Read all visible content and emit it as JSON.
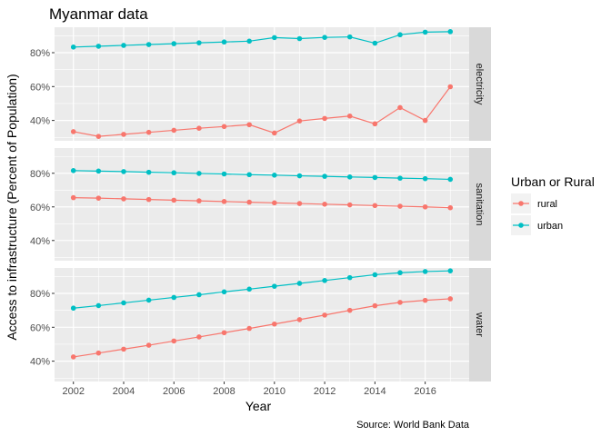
{
  "chart_data": {
    "type": "line",
    "title": "Myanmar data",
    "xlabel": "Year",
    "ylabel": "Access to infrastructure (Percent of Population)",
    "caption": "Source: World Bank Data",
    "x": [
      2002,
      2003,
      2004,
      2005,
      2006,
      2007,
      2008,
      2009,
      2010,
      2011,
      2012,
      2013,
      2014,
      2015,
      2016,
      2017
    ],
    "x_ticks": [
      2002,
      2004,
      2006,
      2008,
      2010,
      2012,
      2014,
      2016
    ],
    "x_tick_labels": [
      "2002",
      "2004",
      "2006",
      "2008",
      "2010",
      "2012",
      "2014",
      "2016"
    ],
    "xlim": [
      2001.25,
      2017.75
    ],
    "ylim": [
      28,
      95
    ],
    "y_ticks": [
      40,
      60,
      80
    ],
    "y_tick_labels": [
      "40%",
      "60%",
      "80%"
    ],
    "grid": true,
    "legend": {
      "title": "Urban or Rural",
      "position": "right",
      "entries": [
        "rural",
        "urban"
      ]
    },
    "colors": {
      "rural": "#F8766D",
      "urban": "#00BFC4"
    },
    "facets": [
      {
        "label": "electricity",
        "series": [
          {
            "name": "rural",
            "values": [
              33.4,
              30.6,
              31.8,
              33.0,
              34.2,
              35.4,
              36.4,
              37.5,
              32.6,
              39.7,
              41.2,
              42.6,
              38.0,
              47.6,
              40.0,
              59.9
            ]
          },
          {
            "name": "urban",
            "values": [
              83.3,
              83.8,
              84.3,
              84.8,
              85.3,
              85.8,
              86.3,
              86.8,
              88.9,
              88.3,
              89.0,
              89.3,
              85.6,
              90.6,
              92.1,
              92.4
            ]
          }
        ]
      },
      {
        "label": "sanitation",
        "series": [
          {
            "name": "rural",
            "values": [
              65.5,
              65.2,
              64.8,
              64.4,
              64.0,
              63.6,
              63.2,
              62.8,
              62.4,
              62.0,
              61.6,
              61.2,
              60.8,
              60.4,
              60.0,
              59.5
            ]
          },
          {
            "name": "urban",
            "values": [
              81.6,
              81.3,
              81.0,
              80.6,
              80.3,
              79.9,
              79.6,
              79.2,
              78.9,
              78.5,
              78.2,
              77.8,
              77.5,
              77.1,
              76.8,
              76.4
            ]
          }
        ]
      },
      {
        "label": "water",
        "series": [
          {
            "name": "rural",
            "values": [
              42.5,
              44.8,
              47.1,
              49.4,
              51.9,
              54.3,
              56.8,
              59.3,
              61.9,
              64.5,
              67.2,
              70.0,
              72.7,
              74.7,
              75.9,
              76.8
            ]
          },
          {
            "name": "urban",
            "values": [
              71.3,
              72.8,
              74.4,
              76.0,
              77.6,
              79.2,
              80.9,
              82.5,
              84.2,
              85.9,
              87.6,
              89.3,
              91.0,
              92.2,
              92.9,
              93.3
            ]
          }
        ]
      }
    ]
  }
}
